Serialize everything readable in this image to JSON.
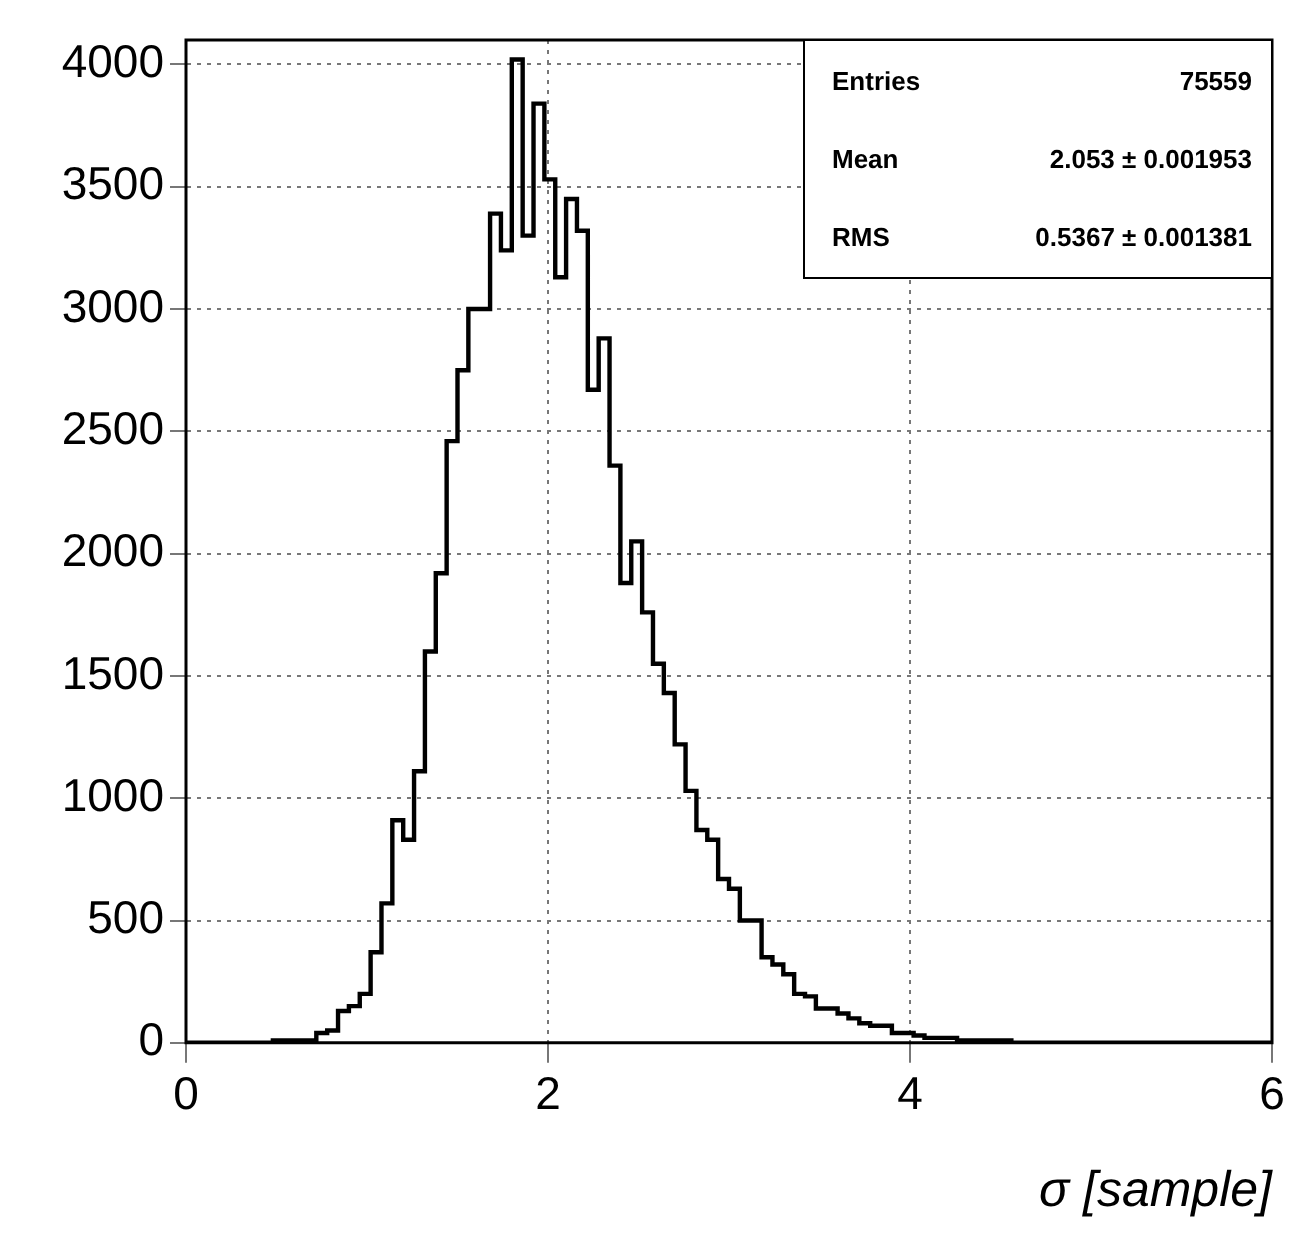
{
  "chart_data": {
    "type": "histogram",
    "xlabel": "σ [sample]",
    "bins": [
      0,
      0.06,
      0.12,
      0.18,
      0.24,
      0.3,
      0.36,
      0.42,
      0.48,
      0.54,
      0.6,
      0.66,
      0.72,
      0.78,
      0.84,
      0.9,
      0.96,
      1.02,
      1.08,
      1.14,
      1.2,
      1.26,
      1.32,
      1.38,
      1.44,
      1.5,
      1.56,
      1.62,
      1.68,
      1.74,
      1.8,
      1.86,
      1.92,
      1.98,
      2.04,
      2.1,
      2.16,
      2.22,
      2.28,
      2.34,
      2.4,
      2.46,
      2.52,
      2.58,
      2.64,
      2.7,
      2.76,
      2.82,
      2.88,
      2.94,
      3,
      3.06,
      3.12,
      3.18,
      3.24,
      3.3,
      3.36,
      3.42,
      3.48,
      3.54,
      3.6,
      3.66,
      3.72,
      3.78,
      3.84,
      3.9,
      3.96,
      4.02,
      4.08,
      4.14,
      4.2,
      4.26,
      4.32,
      4.38,
      4.44,
      4.5,
      4.56,
      4.62,
      4.68,
      4.74,
      4.8,
      4.86,
      4.92,
      4.98,
      5.04,
      5.1,
      5.16,
      5.22,
      5.28,
      5.34,
      5.4,
      5.46,
      5.52,
      5.58,
      5.64,
      5.7,
      5.76,
      5.82,
      5.88,
      5.94,
      6
    ],
    "values": [
      0,
      0,
      0,
      0,
      0,
      0,
      0,
      0,
      10,
      10,
      10,
      10,
      40,
      50,
      130,
      150,
      200,
      370,
      570,
      910,
      830,
      1110,
      1600,
      1920,
      2460,
      2750,
      3000,
      3000,
      3390,
      3240,
      4020,
      3300,
      3840,
      3530,
      3130,
      3450,
      3320,
      2670,
      2880,
      2360,
      1880,
      2050,
      1760,
      1550,
      1430,
      1220,
      1030,
      870,
      830,
      670,
      630,
      500,
      500,
      350,
      320,
      280,
      200,
      190,
      140,
      140,
      120,
      100,
      80,
      70,
      70,
      40,
      40,
      30,
      20,
      20,
      20,
      10,
      10,
      10,
      10,
      10,
      0,
      0,
      0,
      0,
      0,
      0,
      0,
      0,
      0,
      0,
      0,
      0,
      0,
      0,
      0,
      0,
      0,
      0,
      0,
      0,
      0,
      0,
      0,
      0
    ],
    "color": "#000000",
    "xlim": [
      0,
      6
    ],
    "xticks": [
      0,
      2,
      4,
      6
    ],
    "ylim": [
      0,
      4100
    ],
    "yticks": [
      0,
      500,
      1000,
      1500,
      2000,
      2500,
      3000,
      3500,
      4000
    ],
    "grid": true,
    "legend": false,
    "annotations": [
      "Entries",
      "75559",
      "Mean",
      "2.053 ± 0.001953",
      "RMS",
      "0.5367 ± 0.001381"
    ]
  }
}
